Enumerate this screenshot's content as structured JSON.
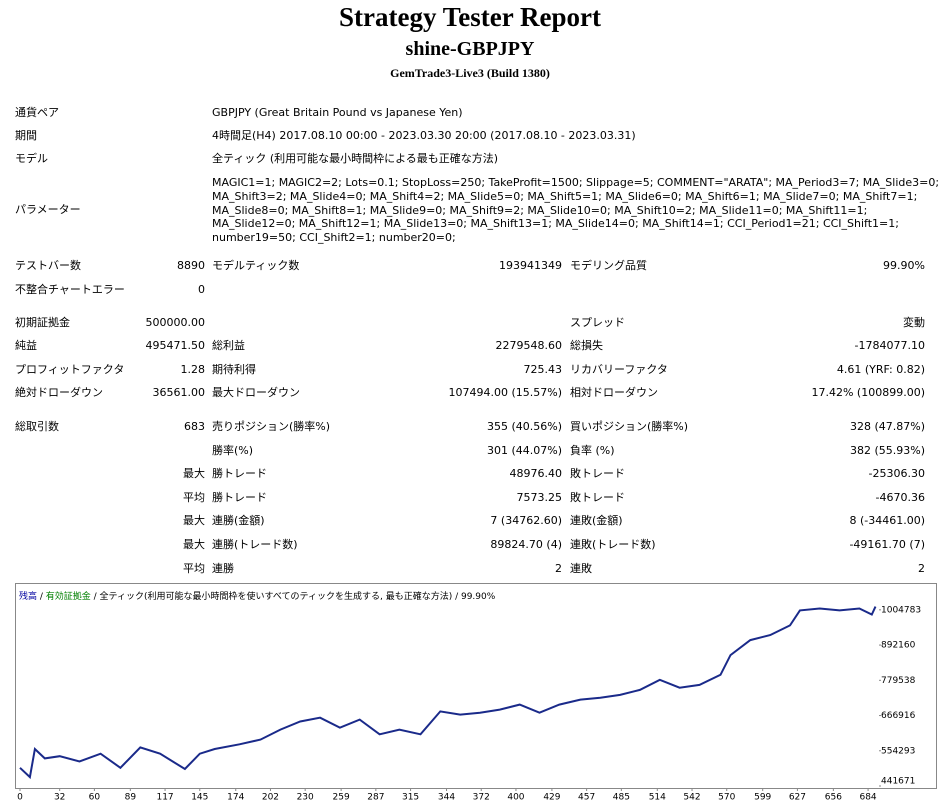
{
  "header": {
    "title": "Strategy Tester Report",
    "subtitle": "shine-GBPJPY",
    "server": "GemTrade3-Live3 (Build 1380)"
  },
  "info": [
    {
      "label": "通貨ペア",
      "value": "GBPJPY (Great Britain Pound vs Japanese Yen)"
    },
    {
      "label": "期間",
      "value": "4時間足(H4) 2017.08.10 00:00 - 2023.03.30 20:00 (2017.08.10 - 2023.03.31)"
    },
    {
      "label": "モデル",
      "value": "全ティック (利用可能な最小時間枠による最も正確な方法)"
    }
  ],
  "parameters": {
    "label": "パラメーター",
    "lines": [
      "MAGIC1=1; MAGIC2=2; Lots=0.1; StopLoss=250; TakeProfit=1500; Slippage=5; COMMENT=\"ARATA\"; MA_Period3=7; MA_Slide3=0;",
      "MA_Shift3=2; MA_Slide4=0; MA_Shift4=2; MA_Slide5=0; MA_Shift5=1; MA_Slide6=0; MA_Shift6=1; MA_Slide7=0; MA_Shift7=1;",
      "MA_Slide8=0; MA_Shift8=1; MA_Slide9=0; MA_Shift9=2; MA_Slide10=0; MA_Shift10=2; MA_Slide11=0; MA_Shift11=1;",
      "MA_Slide12=0; MA_Shift12=1; MA_Slide13=0; MA_Shift13=1; MA_Slide14=0; MA_Shift14=1; CCI_Period1=21; CCI_Shift1=1;",
      "number19=50; CCI_Shift2=1; number20=0;"
    ]
  },
  "stats": [
    {
      "label1": "テストバー数",
      "value1": "8890",
      "label2": "モデルティック数",
      "value2": "193941349",
      "label3": "モデリング品質",
      "value3": "99.90%"
    },
    {
      "label1": "不整合チャートエラー",
      "value1": "0"
    },
    {
      "label1": "初期証拠金",
      "value1": "500000.00",
      "label3": "スプレッド",
      "value3": "変動"
    },
    {
      "label1": "純益",
      "value1": "495471.50",
      "label2": "総利益",
      "value2": "2279548.60",
      "label3": "総損失",
      "value3": "-1784077.10"
    },
    {
      "label1": "プロフィットファクタ",
      "value1": "1.28",
      "label2": "期待利得",
      "value2": "725.43",
      "label3": "リカバリーファクタ",
      "value3": "4.61 (YRF: 0.82)"
    },
    {
      "label1": "絶対ドローダウン",
      "value1": "36561.00",
      "label2": "最大ドローダウン",
      "value2": "107494.00 (15.57%)",
      "label3": "相対ドローダウン",
      "value3": "17.42% (100899.00)"
    },
    {
      "label1": "総取引数",
      "value1": "683",
      "label2": "売りポジション(勝率%)",
      "value2": "355 (40.56%)",
      "label3": "買いポジション(勝率%)",
      "value3": "328 (47.87%)"
    },
    {
      "label2": "勝率(%)",
      "value2": "301 (44.07%)",
      "label3": "負率 (%)",
      "value3": "382 (55.93%)"
    },
    {
      "value1": "最大",
      "label2": "勝トレード",
      "value2": "48976.40",
      "label3": "敗トレード",
      "value3": "-25306.30"
    },
    {
      "value1": "平均",
      "label2": "勝トレード",
      "value2": "7573.25",
      "label3": "敗トレード",
      "value3": "-4670.36"
    },
    {
      "value1": "最大",
      "label2": "連勝(金額)",
      "value2": "7 (34762.60)",
      "label3": "連敗(金額)",
      "value3": "8 (-34461.00)"
    },
    {
      "value1": "最大",
      "label2": "連勝(トレード数)",
      "value2": "89824.70 (4)",
      "label3": "連敗(トレード数)",
      "value3": "-49161.70 (7)"
    },
    {
      "value1": "平均",
      "label2": "連勝",
      "value2": "2",
      "label3": "連敗",
      "value3": "2"
    }
  ],
  "chart_data": {
    "type": "line",
    "legend": [
      {
        "text": "残高",
        "color": "#0000a0"
      },
      {
        "text": " / "
      },
      {
        "text": "有効証拠金",
        "color": "#008000"
      },
      {
        "text": " / 全ティック(利用可能な最小時間枠を使いすべてのティックを生成する, 最も正確な方法) / 99.90%"
      }
    ],
    "color": "#1a2a8a",
    "x": [
      0,
      8,
      12,
      20,
      32,
      48,
      65,
      81,
      97,
      113,
      133,
      145,
      157,
      177,
      194,
      210,
      226,
      242,
      258,
      274,
      290,
      306,
      323,
      339,
      355,
      371,
      387,
      403,
      419,
      435,
      452,
      468,
      484,
      500,
      516,
      532,
      548,
      565,
      573,
      589,
      605,
      621,
      629,
      645,
      661,
      677,
      687,
      690
    ],
    "values": [
      500000,
      470000,
      560000,
      530000,
      537000,
      520000,
      545000,
      500000,
      565000,
      545000,
      496000,
      545000,
      560000,
      575000,
      590000,
      622000,
      648000,
      660000,
      628000,
      654000,
      607000,
      622000,
      607000,
      680000,
      670000,
      676000,
      686000,
      702000,
      676000,
      702000,
      718000,
      724000,
      733000,
      749000,
      781000,
      756000,
      765000,
      797000,
      860000,
      908000,
      924000,
      955000,
      1003000,
      1009000,
      1003000,
      1009000,
      990000,
      1015000
    ],
    "xlim": [
      0,
      692
    ],
    "xticks": [
      0,
      32,
      60,
      89,
      117,
      145,
      174,
      202,
      230,
      259,
      287,
      315,
      344,
      372,
      400,
      429,
      457,
      485,
      514,
      542,
      570,
      599,
      627,
      656,
      684
    ],
    "ylim": [
      441671,
      1065000
    ],
    "yticks": [
      441671,
      554293,
      666916,
      779538,
      892160,
      1004783
    ]
  }
}
